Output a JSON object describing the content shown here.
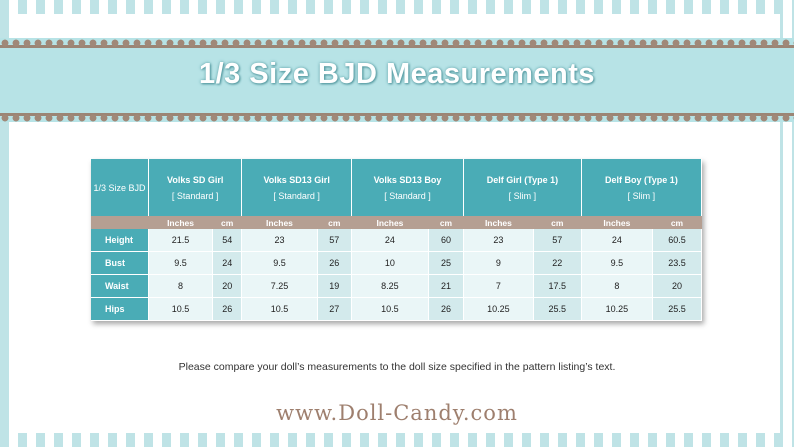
{
  "title": "1/3 Size BJD Measurements",
  "table": {
    "corner_label": "1/3 Size BJD",
    "columns": [
      {
        "name": "Volks SD Girl",
        "type": "[ Standard ]"
      },
      {
        "name": "Volks SD13 Girl",
        "type": "[ Standard ]"
      },
      {
        "name": "Volks SD13 Boy",
        "type": "[ Standard ]"
      },
      {
        "name": "Delf Girl (Type 1)",
        "type": "[ Slim ]"
      },
      {
        "name": "Delf Boy (Type 1)",
        "type": "[ Slim ]"
      }
    ],
    "unit_inches": "Inches",
    "unit_cm": "cm",
    "rows": [
      {
        "label": "Height",
        "values": [
          "21.5",
          "54",
          "23",
          "57",
          "24",
          "60",
          "23",
          "57",
          "24",
          "60.5"
        ]
      },
      {
        "label": "Bust",
        "values": [
          "9.5",
          "24",
          "9.5",
          "26",
          "10",
          "25",
          "9",
          "22",
          "9.5",
          "23.5"
        ]
      },
      {
        "label": "Waist",
        "values": [
          "8",
          "20",
          "7.25",
          "19",
          "8.25",
          "21",
          "7",
          "17.5",
          "8",
          "20"
        ]
      },
      {
        "label": "Hips",
        "values": [
          "10.5",
          "26",
          "10.5",
          "27",
          "10.5",
          "26",
          "10.25",
          "25.5",
          "10.25",
          "25.5"
        ]
      }
    ]
  },
  "note": "Please compare your doll’s measurements to the doll size specified in the pattern listing’s text.",
  "website": "www.Doll-Candy.com",
  "colors": {
    "header": "#4aacb6",
    "units_bar": "#b59f92",
    "band": "#b7e3e6",
    "lace": "#a08878"
  }
}
